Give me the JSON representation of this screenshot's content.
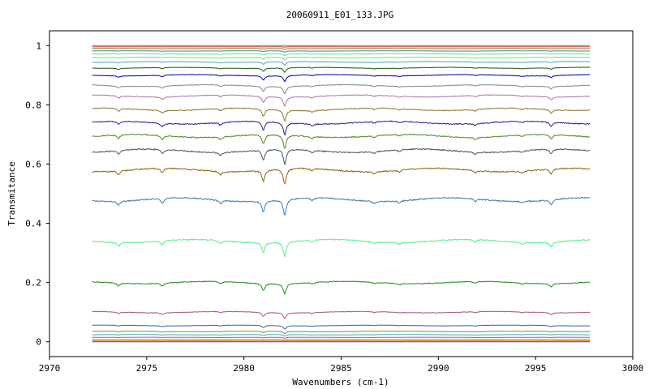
{
  "chart_data": {
    "type": "line",
    "title": "20060911_E01_133.JPG",
    "xlabel": "Wavenumbers (cm-1)",
    "ylabel": "Transmitance",
    "xlim": [
      2970,
      3000
    ],
    "ylim": [
      -0.05,
      1.05
    ],
    "x_ticks": [
      2970,
      2975,
      2980,
      2985,
      2990,
      2995,
      3000
    ],
    "y_ticks": [
      0,
      0.2,
      0.4,
      0.6,
      0.8,
      1
    ],
    "x_tick_labels": [
      "2970",
      "2975",
      "2980",
      "2985",
      "2990",
      "2995",
      "3000"
    ],
    "y_tick_labels": [
      "0",
      "0.2",
      "0.4",
      "0.6",
      "0.8",
      "1"
    ],
    "x_range": [
      2972.2,
      2997.8
    ],
    "grid": false,
    "legend": "none",
    "absorption_lines": [
      {
        "x": 2973.55,
        "depth": 0.55
      },
      {
        "x": 2975.8,
        "depth": 0.6
      },
      {
        "x": 2978.8,
        "depth": 0.45
      },
      {
        "x": 2981.0,
        "depth": 1.5
      },
      {
        "x": 2982.1,
        "depth": 2.2
      },
      {
        "x": 2983.5,
        "depth": 0.35
      },
      {
        "x": 2986.7,
        "depth": 0.3
      },
      {
        "x": 2988.0,
        "depth": 0.25
      },
      {
        "x": 2991.9,
        "depth": 0.35
      },
      {
        "x": 2994.3,
        "depth": 0.25
      },
      {
        "x": 2995.8,
        "depth": 0.7
      }
    ],
    "series": [
      {
        "baseline": 0.0,
        "color": "#4444cc"
      },
      {
        "baseline": 0.003,
        "color": "#cc6600"
      },
      {
        "baseline": 0.008,
        "color": "#66aa66"
      },
      {
        "baseline": 0.015,
        "color": "#cc44cc"
      },
      {
        "baseline": 0.024,
        "color": "#44aaaa"
      },
      {
        "baseline": 0.035,
        "color": "#888844"
      },
      {
        "baseline": 0.055,
        "color": "#336699"
      },
      {
        "baseline": 0.1,
        "color": "#aa5577"
      },
      {
        "baseline": 0.2,
        "color": "#228822"
      },
      {
        "baseline": 0.34,
        "color": "#55ee88"
      },
      {
        "baseline": 0.48,
        "color": "#4477aa"
      },
      {
        "baseline": 0.58,
        "color": "#886611"
      },
      {
        "baseline": 0.645,
        "color": "#445566"
      },
      {
        "baseline": 0.695,
        "color": "#558822"
      },
      {
        "baseline": 0.74,
        "color": "#222288"
      },
      {
        "baseline": 0.785,
        "color": "#887733"
      },
      {
        "baseline": 0.83,
        "color": "#aa77aa"
      },
      {
        "baseline": 0.865,
        "color": "#888888"
      },
      {
        "baseline": 0.9,
        "color": "#0000aa"
      },
      {
        "baseline": 0.925,
        "color": "#225522"
      },
      {
        "baseline": 0.945,
        "color": "#44aaaa"
      },
      {
        "baseline": 0.96,
        "color": "#88cc88"
      },
      {
        "baseline": 0.972,
        "color": "#66dd99"
      },
      {
        "baseline": 0.982,
        "color": "#339966"
      },
      {
        "baseline": 0.99,
        "color": "#996633"
      },
      {
        "baseline": 0.996,
        "color": "#cc3333"
      },
      {
        "baseline": 1.0,
        "color": "#33aa33"
      }
    ]
  }
}
